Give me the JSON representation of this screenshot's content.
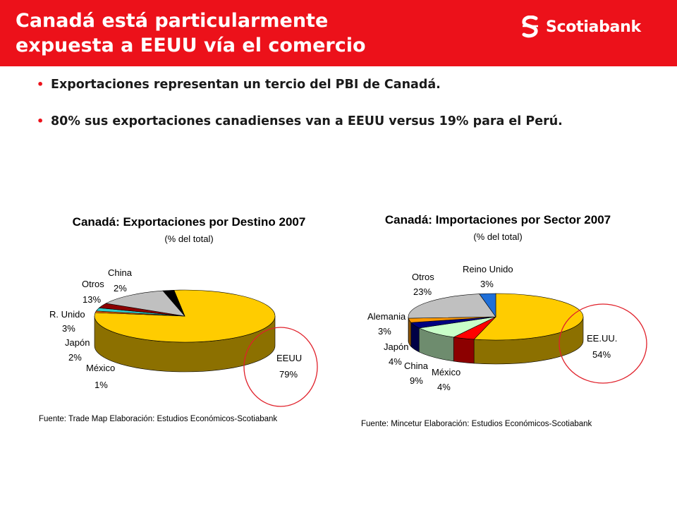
{
  "header": {
    "title": "Canadá está particularmente\nexpuesta a EEUU vía el comercio",
    "brand": "Scotiabank",
    "colors": {
      "background": "#ec111a",
      "text": "#ffffff"
    }
  },
  "bullets": [
    "Exportaciones representan un tercio del PBI de Canadá.",
    "80% sus exportaciones canadienses van a EEUU versus 19% para el Perú."
  ],
  "chart_data": [
    {
      "type": "pie",
      "title": "Canadá: Exportaciones por Destino 2007",
      "subtitle": "(% del total)",
      "slices": [
        {
          "name": "EEUU",
          "label": "79%",
          "value": 79,
          "color": "#ffcc00"
        },
        {
          "name": "México",
          "label": "1%",
          "value": 1,
          "color": "#ff6a00"
        },
        {
          "name": "Japón",
          "label": "2%",
          "value": 2,
          "color": "#33cccc"
        },
        {
          "name": "R. Unido",
          "label": "3%",
          "value": 3,
          "color": "#8b0000"
        },
        {
          "name": "Otros",
          "label": "13%",
          "value": 13,
          "color": "#c0c0c0"
        },
        {
          "name": "China",
          "label": "2%",
          "value": 2,
          "color": "#000000"
        }
      ],
      "highlight": "EEUU",
      "source": "Fuente: Trade Map Elaboración: Estudios Económicos-Scotiabank"
    },
    {
      "type": "pie",
      "title": "Canadá: Importaciones por Sector 2007",
      "subtitle": "(% del total)",
      "slices": [
        {
          "name": "EE.UU.",
          "label": "54%",
          "value": 54,
          "color": "#ffcc00"
        },
        {
          "name": "México",
          "label": "4%",
          "value": 4,
          "color": "#ff0000"
        },
        {
          "name": "China",
          "label": "9%",
          "value": 9,
          "color": "#c8ffc8"
        },
        {
          "name": "Japón",
          "label": "4%",
          "value": 4,
          "color": "#000080"
        },
        {
          "name": "Alemania",
          "label": "3%",
          "value": 3,
          "color": "#ff9900"
        },
        {
          "name": "Otros",
          "label": "23%",
          "value": 23,
          "color": "#c0c0c0"
        },
        {
          "name": "Reino Unido",
          "label": "3%",
          "value": 3,
          "color": "#1f6fd8"
        }
      ],
      "highlight": "EE.UU.",
      "source": "Fuente: Mincetur Elaboración: Estudios Económicos-Scotiabank"
    }
  ]
}
